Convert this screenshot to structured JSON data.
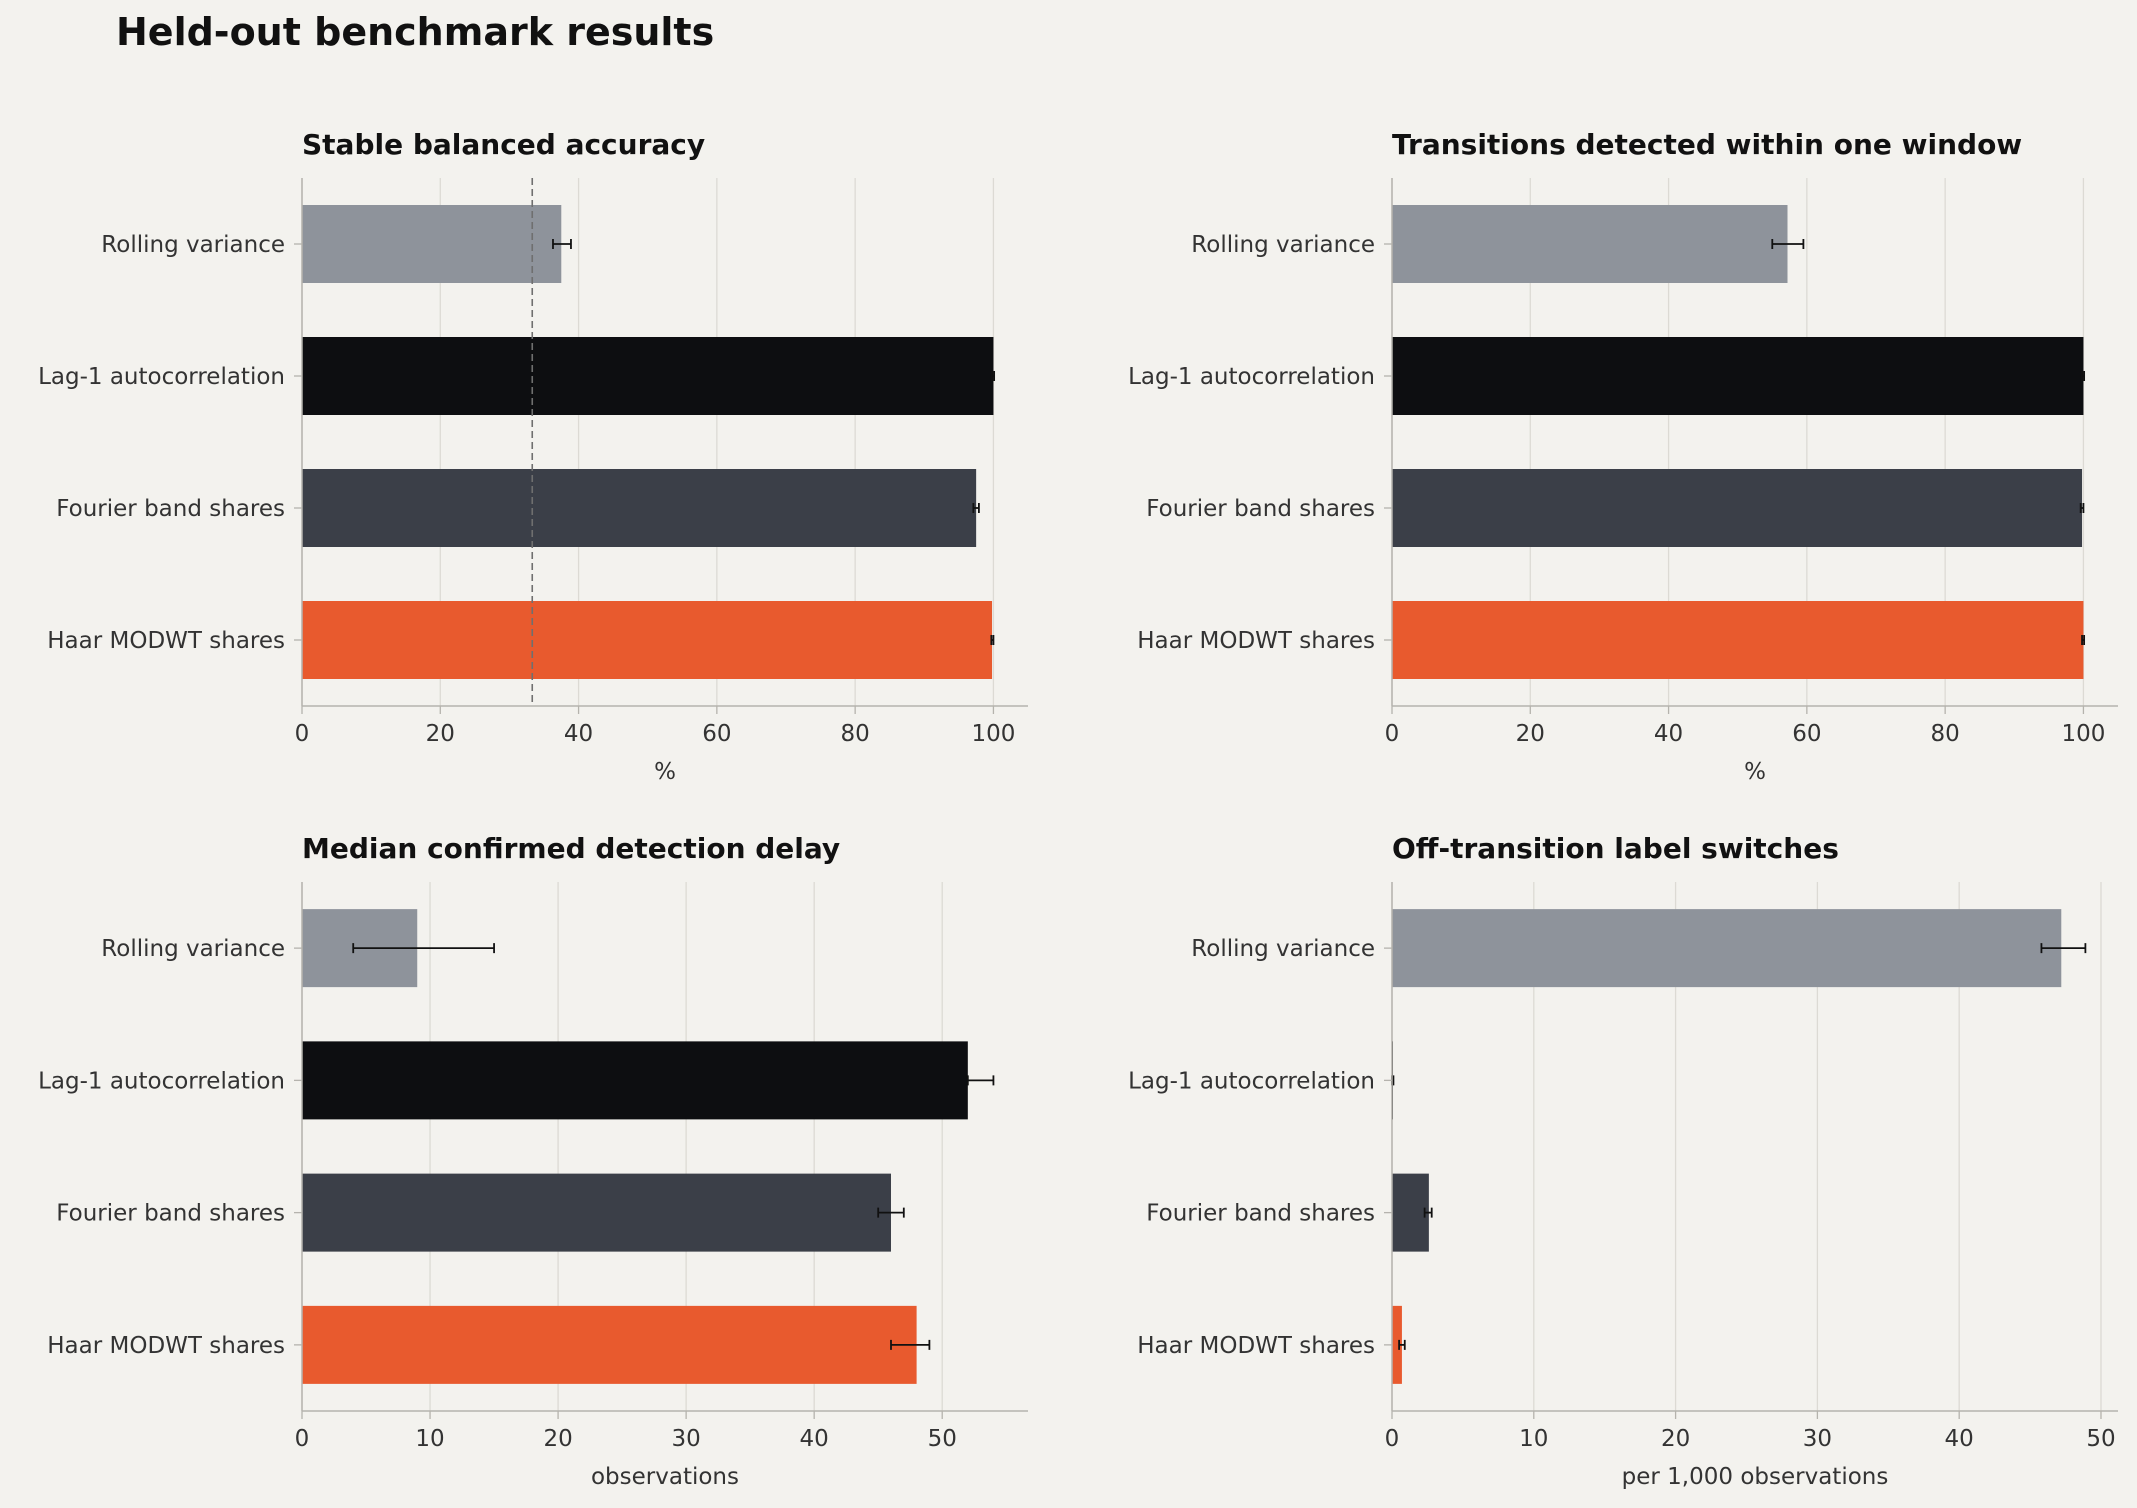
{
  "figure": {
    "title": "Held-out benchmark results"
  },
  "colors": {
    "background": "#f3f2ee",
    "grid": "#dcdad4",
    "axis": "#b5b3ad",
    "text": "#333333",
    "title": "#111111",
    "errorbar": "#111111",
    "series": [
      "#8e939b",
      "#0d0e11",
      "#3b3f48",
      "#e85a2e"
    ]
  },
  "chart_data": [
    {
      "type": "bar",
      "orientation": "horizontal",
      "title": "Stable balanced accuracy",
      "xlabel": "%",
      "ylabel": "",
      "categories": [
        "Rolling variance",
        "Lag-1 autocorrelation",
        "Fourier band shares",
        "Haar MODWT shares"
      ],
      "values": [
        37.5,
        100,
        97.5,
        99.8
      ],
      "err_low": [
        36.3,
        99.8,
        97.1,
        99.7
      ],
      "err_high": [
        38.9,
        100.1,
        97.9,
        100.0
      ],
      "xlim": [
        0,
        105
      ],
      "xticks": [
        0,
        20,
        40,
        60,
        80,
        100
      ],
      "reference_line": 33.3,
      "grid": "x"
    },
    {
      "type": "bar",
      "orientation": "horizontal",
      "title": "Transitions detected within one window",
      "xlabel": "%",
      "ylabel": "",
      "categories": [
        "Rolling variance",
        "Lag-1 autocorrelation",
        "Fourier band shares",
        "Haar MODWT shares"
      ],
      "values": [
        57.2,
        100,
        99.8,
        100
      ],
      "err_low": [
        55.0,
        99.8,
        99.6,
        99.8
      ],
      "err_high": [
        59.5,
        100.1,
        100.0,
        100.1
      ],
      "xlim": [
        0,
        105
      ],
      "xticks": [
        0,
        20,
        40,
        60,
        80,
        100
      ],
      "grid": "x"
    },
    {
      "type": "bar",
      "orientation": "horizontal",
      "title": "Median confirmed detection delay",
      "xlabel": "observations",
      "ylabel": "",
      "categories": [
        "Rolling variance",
        "Lag-1 autocorrelation",
        "Fourier band shares",
        "Haar MODWT shares"
      ],
      "values": [
        9,
        52,
        46,
        48
      ],
      "err_low": [
        4,
        52,
        45,
        46
      ],
      "err_high": [
        15,
        54,
        47,
        49
      ],
      "xlim": [
        0,
        56.7
      ],
      "xticks": [
        0,
        10,
        20,
        30,
        40,
        50
      ],
      "grid": "x"
    },
    {
      "type": "bar",
      "orientation": "horizontal",
      "title": "Off-transition label switches",
      "xlabel": "per 1,000 observations",
      "ylabel": "",
      "categories": [
        "Rolling variance",
        "Lag-1 autocorrelation",
        "Fourier band shares",
        "Haar MODWT shares"
      ],
      "values": [
        47.2,
        0.05,
        2.6,
        0.7
      ],
      "err_low": [
        45.8,
        0.0,
        2.3,
        0.5
      ],
      "err_high": [
        48.9,
        0.1,
        2.8,
        0.9
      ],
      "xlim": [
        0,
        51.2
      ],
      "xticks": [
        0,
        10,
        20,
        30,
        40,
        50
      ],
      "grid": "x"
    }
  ]
}
